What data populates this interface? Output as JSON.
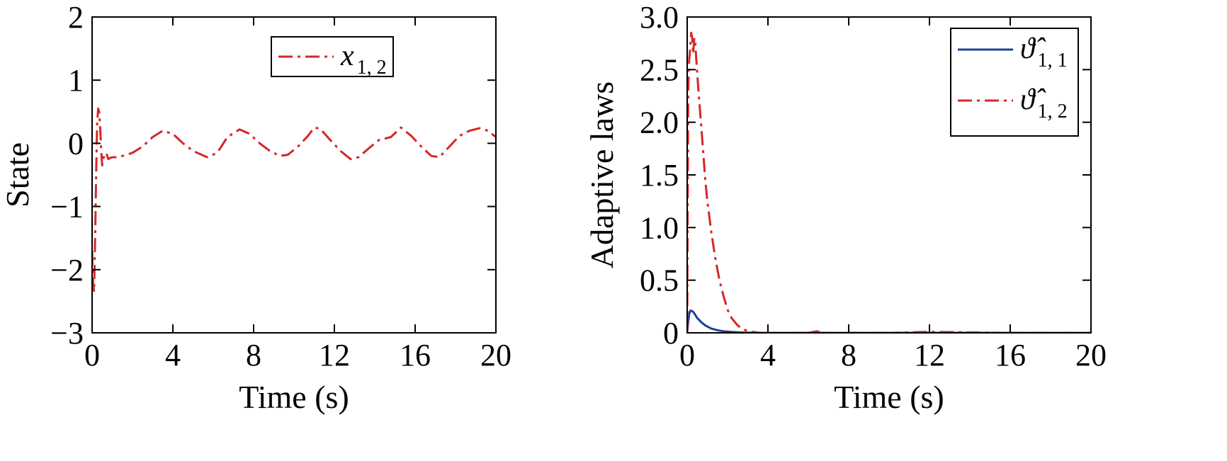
{
  "chart_data": [
    {
      "type": "line",
      "xlabel": "Time (s)",
      "ylabel": "State",
      "xlim": [
        0,
        20
      ],
      "ylim": [
        -3,
        2
      ],
      "xticks": [
        0,
        4,
        8,
        12,
        16,
        20
      ],
      "xtick_labels": [
        "0",
        "4",
        "8",
        "12",
        "16",
        "20"
      ],
      "yticks": [
        2,
        1,
        0,
        -1,
        -2,
        -3
      ],
      "ytick_labels": [
        "2",
        "1",
        "0",
        "−1",
        "−2",
        "−3"
      ],
      "grid": false,
      "legend_position": "top-center",
      "series": [
        {
          "name": "x",
          "name_subscript": "1, 2",
          "color": "#d62728",
          "dash": "dash-dot",
          "x": [
            0,
            0.05,
            0.1,
            0.15,
            0.2,
            0.25,
            0.3,
            0.35,
            0.4,
            0.45,
            0.5,
            0.55,
            0.6,
            0.7,
            0.8,
            0.9,
            1.0,
            1.2,
            1.5,
            2.0,
            2.5,
            3.0,
            3.5,
            4.0,
            4.5,
            5.0,
            5.7,
            6.2,
            6.7,
            7.3,
            7.8,
            8.3,
            8.8,
            9.3,
            9.7,
            10.2,
            10.7,
            11.0,
            11.3,
            11.8,
            12.3,
            12.8,
            13.2,
            13.7,
            14.2,
            14.8,
            15.3,
            15.8,
            16.3,
            16.8,
            17.2,
            17.7,
            18.2,
            18.7,
            19.2,
            19.6,
            20.0
          ],
          "y": [
            -1.7,
            -2.2,
            -2.35,
            -1.5,
            -0.5,
            0.3,
            0.55,
            0.5,
            0.25,
            -0.1,
            -0.35,
            -0.25,
            -0.2,
            -0.15,
            -0.25,
            -0.23,
            -0.22,
            -0.22,
            -0.2,
            -0.15,
            -0.05,
            0.1,
            0.2,
            0.15,
            0.0,
            -0.12,
            -0.22,
            -0.15,
            0.1,
            0.22,
            0.15,
            0.0,
            -0.12,
            -0.2,
            -0.18,
            -0.05,
            0.12,
            0.25,
            0.23,
            0.05,
            -0.12,
            -0.25,
            -0.22,
            -0.08,
            0.05,
            0.1,
            0.25,
            0.12,
            -0.05,
            -0.2,
            -0.22,
            -0.05,
            0.12,
            0.2,
            0.24,
            0.2,
            0.1
          ]
        }
      ]
    },
    {
      "type": "line",
      "xlabel": "Time (s)",
      "ylabel": "Adaptive laws",
      "xlim": [
        0,
        20
      ],
      "ylim": [
        0,
        3.0
      ],
      "xticks": [
        0,
        4,
        8,
        12,
        16,
        20
      ],
      "xtick_labels": [
        "0",
        "4",
        "8",
        "12",
        "16",
        "20"
      ],
      "yticks": [
        3.0,
        2.5,
        2.0,
        1.5,
        1.0,
        0.5,
        0
      ],
      "ytick_labels": [
        "3.0",
        "2.5",
        "2.0",
        "1.5",
        "1.0",
        "0.5",
        "0"
      ],
      "grid": false,
      "legend_position": "top-right",
      "series": [
        {
          "name": "ϑ̂",
          "name_subscript": "1, 1",
          "color": "#1f3f99",
          "dash": "solid",
          "x": [
            0,
            0.05,
            0.1,
            0.15,
            0.2,
            0.3,
            0.4,
            0.5,
            0.7,
            0.9,
            1.2,
            1.5,
            1.8,
            2.2,
            2.6,
            3.0,
            4.0,
            6.0,
            10.0,
            14.0,
            20.0
          ],
          "y": [
            0.0,
            0.1,
            0.18,
            0.21,
            0.21,
            0.2,
            0.17,
            0.14,
            0.1,
            0.07,
            0.04,
            0.025,
            0.015,
            0.008,
            0.004,
            0.002,
            0.0,
            0.0,
            0.0,
            0.0,
            0.0
          ]
        },
        {
          "name": "ϑ̂",
          "name_subscript": "1, 2",
          "color": "#d62728",
          "dash": "dash-dot",
          "x": [
            0,
            0.05,
            0.1,
            0.15,
            0.2,
            0.25,
            0.3,
            0.35,
            0.4,
            0.5,
            0.6,
            0.7,
            0.8,
            0.9,
            1.0,
            1.2,
            1.4,
            1.6,
            1.8,
            2.0,
            2.2,
            2.5,
            2.8,
            3.2,
            3.6,
            4.0,
            4.5,
            6.0,
            6.4,
            6.8,
            10.0,
            12.0,
            16.0,
            20.0
          ],
          "y": [
            0.0,
            2.3,
            2.6,
            2.7,
            2.85,
            2.8,
            2.65,
            2.8,
            2.75,
            2.45,
            2.2,
            1.95,
            1.7,
            1.45,
            1.25,
            0.95,
            0.7,
            0.5,
            0.35,
            0.22,
            0.14,
            0.07,
            0.03,
            0.01,
            0.0,
            0.0,
            0.0,
            0.0,
            0.015,
            0.0,
            0.0,
            0.01,
            0.0,
            0.0
          ]
        }
      ]
    }
  ]
}
